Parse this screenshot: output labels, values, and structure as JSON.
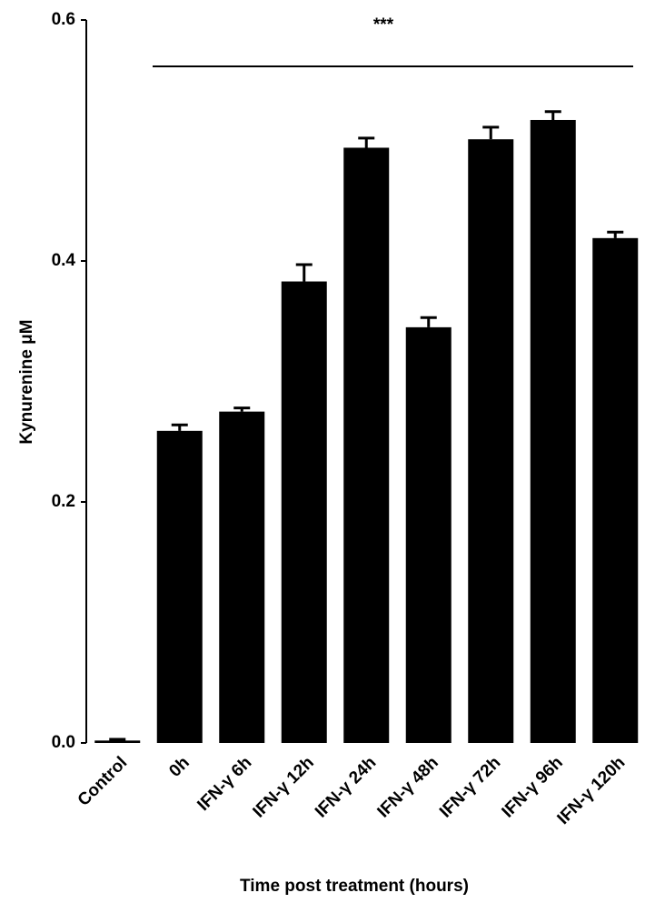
{
  "chart_data": {
    "type": "bar",
    "title": "***",
    "x_label": "Time post treatment (hours)",
    "y_label": "Kynurenine μM",
    "categories": [
      "Control",
      "0h",
      "IFN-γ 6h",
      "IFN-γ 12h",
      "IFN-γ 24h",
      "IFN-γ 48h",
      "IFN-γ 72h",
      "IFN-γ 96h",
      "IFN-γ 120h"
    ],
    "values": [
      0.002,
      0.259,
      0.275,
      0.383,
      0.494,
      0.345,
      0.501,
      0.517,
      0.419
    ],
    "errors": [
      0.001,
      0.005,
      0.003,
      0.014,
      0.008,
      0.008,
      0.01,
      0.007,
      0.005
    ],
    "color": "#000000",
    "ylim": [
      0,
      0.6
    ],
    "yticks": [
      {
        "value": 0,
        "label": "0.0"
      },
      0.2,
      0.4,
      0.6
    ]
  }
}
